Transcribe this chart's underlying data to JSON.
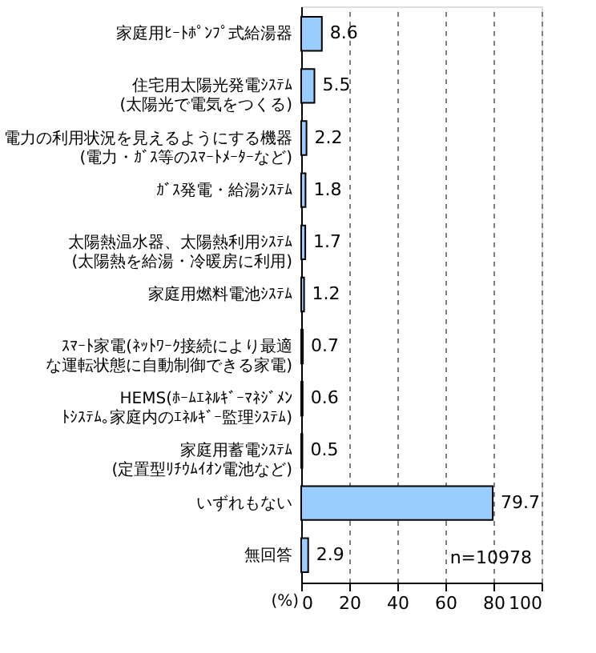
{
  "chart_data": {
    "type": "bar",
    "orientation": "horizontal",
    "categories": [
      "家庭用ﾋｰﾄﾎﾟﾝﾌﾟ式給湯器",
      "住宅用太陽光発電ｼｽﾃﾑ\n(太陽光で電気をつくる)",
      "電力の利用状況を見えるようにする機器\n(電力・ｶﾞｽ等のｽﾏｰﾄﾒｰﾀｰなど)",
      "ｶﾞｽ発電・給湯ｼｽﾃﾑ",
      "太陽熱温水器、太陽熱利用ｼｽﾃﾑ\n(太陽熱を給湯・冷暖房に利用)",
      "家庭用燃料電池ｼｽﾃﾑ",
      "ｽﾏｰﾄ家電(ﾈｯﾄﾜｰｸ接続により最適な運転状態に自動制御できる家電)",
      "HEMS(ﾎｰﾑｴﾈﾙｷﾞｰﾏﾈｼﾞﾒﾝﾄｼｽﾃﾑ｡家庭内のｴﾈﾙｷﾞｰ監理ｼｽﾃﾑ)",
      "家庭用蓄電ｼｽﾃﾑ\n(定置型ﾘﾁｳﾑｲｵﾝ電池など)",
      "いずれもない",
      "無回答"
    ],
    "values": [
      8.6,
      5.5,
      2.2,
      1.8,
      1.7,
      1.2,
      0.7,
      0.6,
      0.5,
      79.7,
      2.9
    ],
    "color": "#99ccff",
    "data_labels": true,
    "xlabel": "(%)",
    "xlim": [
      0,
      100
    ],
    "xticks": [
      0,
      20,
      40,
      60,
      80,
      100
    ],
    "grid": "x",
    "annotations": [
      "n=10978"
    ]
  }
}
